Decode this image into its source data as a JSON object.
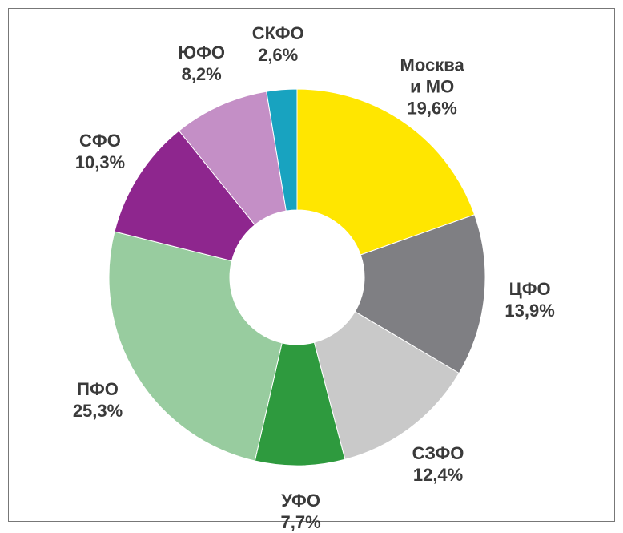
{
  "chart_data": {
    "type": "donut",
    "categories": [
      "Москва\nи МО",
      "ЦФО",
      "СЗФО",
      "УФО",
      "ПФО",
      "СФО",
      "ЮФО",
      "СКФО"
    ],
    "values": [
      19.6,
      13.9,
      12.4,
      7.7,
      25.3,
      10.3,
      8.2,
      2.6
    ],
    "value_labels": [
      "19,6%",
      "13,9%",
      "12,4%",
      "7,7%",
      "25,3%",
      "10,3%",
      "8,2%",
      "2,6%"
    ],
    "colors": [
      "#ffe600",
      "#7f7f83",
      "#c9c9c9",
      "#2e9a3e",
      "#98cc9f",
      "#8e268e",
      "#c48fc6",
      "#18a3c0"
    ]
  }
}
